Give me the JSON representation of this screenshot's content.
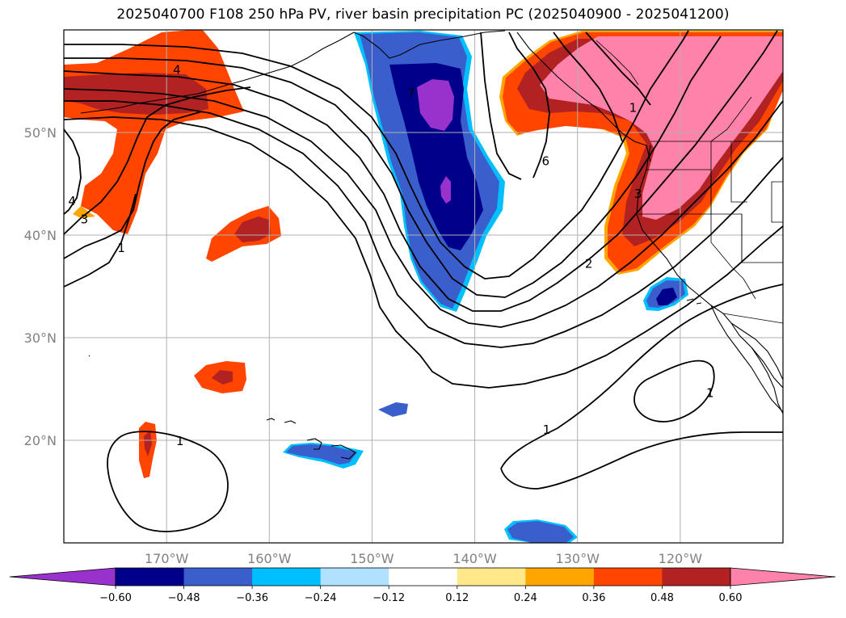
{
  "title": "2025040700 F108 250 hPa PV, river basin precipitation PC (2025040900 - 2025041200)",
  "map": {
    "projection": "PlateCarree",
    "lon_range": [
      -180,
      -110
    ],
    "lat_range": [
      10,
      60
    ],
    "lon_ticks": [
      {
        "lon": -170,
        "label": "170°W"
      },
      {
        "lon": -160,
        "label": "160°W"
      },
      {
        "lon": -150,
        "label": "150°W"
      },
      {
        "lon": -140,
        "label": "140°W"
      },
      {
        "lon": -130,
        "label": "130°W"
      },
      {
        "lon": -120,
        "label": "120°W"
      }
    ],
    "lat_ticks": [
      {
        "lat": 50,
        "label": "50°N"
      },
      {
        "lat": 40,
        "label": "40°N"
      },
      {
        "lat": 30,
        "label": "30°N"
      },
      {
        "lat": 20,
        "label": "20°N"
      }
    ],
    "gridlines": true
  },
  "pv_contours": {
    "color": "#000000",
    "labels": [
      {
        "text": "4",
        "lon": -169,
        "lat": 56.2
      },
      {
        "text": "4",
        "lon": -179.2,
        "lat": 43.4
      },
      {
        "text": "3",
        "lon": -178.0,
        "lat": 41.6
      },
      {
        "text": "1",
        "lon": -174.4,
        "lat": 38.8
      },
      {
        "text": "6",
        "lon": -133.1,
        "lat": 47.3
      },
      {
        "text": "3",
        "lon": -124.1,
        "lat": 44.1
      },
      {
        "text": "2",
        "lon": -128.9,
        "lat": 37.3
      },
      {
        "text": "1",
        "lon": -117.1,
        "lat": 24.7
      },
      {
        "text": "1",
        "lon": -133.0,
        "lat": 21.1
      },
      {
        "text": "1",
        "lon": -168.7,
        "lat": 20.0
      },
      {
        "text": "7",
        "lon": -146.2,
        "lat": 53.9
      },
      {
        "text": "1",
        "lon": -124.6,
        "lat": 52.5
      }
    ]
  },
  "colorbar": {
    "orientation": "horizontal",
    "extend": "both",
    "tick_labels": [
      "−0.60",
      "−0.48",
      "−0.36",
      "−0.24",
      "−0.12",
      "0.12",
      "0.24",
      "0.36",
      "0.48",
      "0.60"
    ],
    "colors": [
      "#9932cc",
      "#00008b",
      "#3a5fcd",
      "#00bfff",
      "#b0e2ff",
      "#ffffff",
      "#ffe88a",
      "#ffa500",
      "#ff4500",
      "#b22222",
      "#ff82ab"
    ]
  },
  "shading_colors": {
    "neg_strong": "#9932cc",
    "neg_high": "#00008b",
    "neg_mid": "#3a5fcd",
    "neg_low": "#00bfff",
    "pos_low": "#ffa500",
    "pos_mid": "#ff4500",
    "pos_high": "#b22222",
    "pos_strong": "#ff82ab"
  }
}
